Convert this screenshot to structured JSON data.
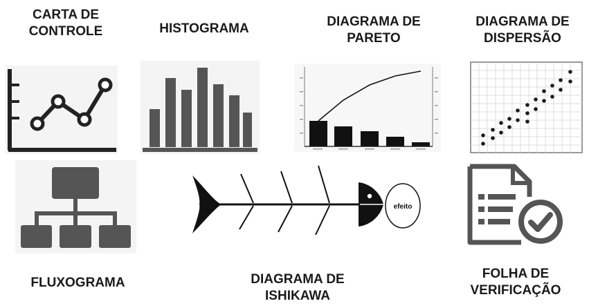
{
  "tools": {
    "control_chart": {
      "line1": "CARTA DE",
      "line2": "CONTROLE"
    },
    "histogram": {
      "line1": "HISTOGRAMA"
    },
    "pareto": {
      "line1": "DIAGRAMA DE",
      "line2": "PARETO"
    },
    "scatter": {
      "line1": "DIAGRAMA DE",
      "line2": "DISPERSÃO"
    },
    "flowchart": {
      "line1": "FLUXOGRAMA"
    },
    "ishikawa": {
      "line1": "DIAGRAMA DE",
      "line2": "ISHIKAWA",
      "effect_label": "efeito"
    },
    "checksheet": {
      "line1": "FOLHA DE",
      "line2": "VERIFICAÇÃO"
    }
  },
  "colors": {
    "icon": "#555555",
    "text": "#1a1a1a",
    "line": "#000000"
  }
}
